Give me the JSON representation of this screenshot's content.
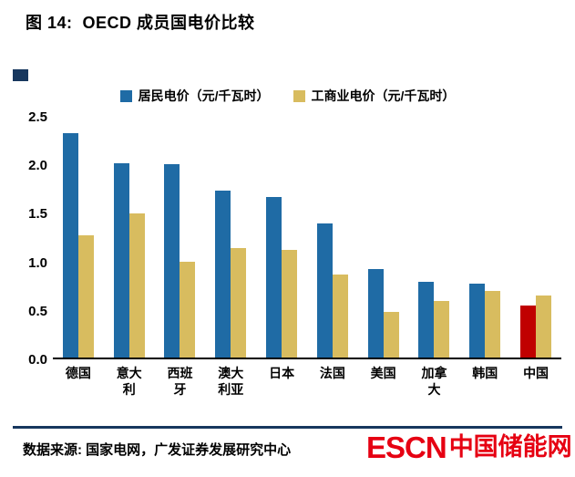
{
  "title": "图 14:  OECD 成员国电价比较",
  "chart_data": {
    "type": "bar",
    "title": "OECD 成员国电价比较",
    "categories": [
      "德国",
      "意大利",
      "西班牙",
      "澳大利亚",
      "日本",
      "法国",
      "美国",
      "加拿大",
      "韩国",
      "中国"
    ],
    "series": [
      {
        "name": "居民电价（元/千瓦时）",
        "color": "#1F6BA5",
        "values": [
          2.31,
          2.0,
          1.99,
          1.72,
          1.65,
          1.38,
          0.91,
          0.78,
          0.76,
          0.54
        ],
        "highlight_index": 9,
        "highlight_color": "#C00000"
      },
      {
        "name": "工商业电价（元/千瓦时）",
        "color": "#D8BC5F",
        "values": [
          1.26,
          1.49,
          0.99,
          1.13,
          1.11,
          0.86,
          0.47,
          0.58,
          0.69,
          0.64
        ]
      }
    ],
    "ylim": [
      0,
      2.5
    ],
    "yticks": [
      0.0,
      0.5,
      1.0,
      1.5,
      2.0,
      2.5
    ],
    "grid": false,
    "legend_position": "top"
  },
  "footer": {
    "source": "数据来源: 国家电网，广发证券发展研究中心",
    "logo": {
      "escn": "ESCN",
      "cn": "中国储能网"
    }
  },
  "colors": {
    "accent_navy": "#17375E",
    "residential_blue": "#1F6BA5",
    "industrial_gold": "#D8BC5F",
    "china_red": "#C00000",
    "logo_red": "#E60012",
    "axis_black": "#000000"
  }
}
